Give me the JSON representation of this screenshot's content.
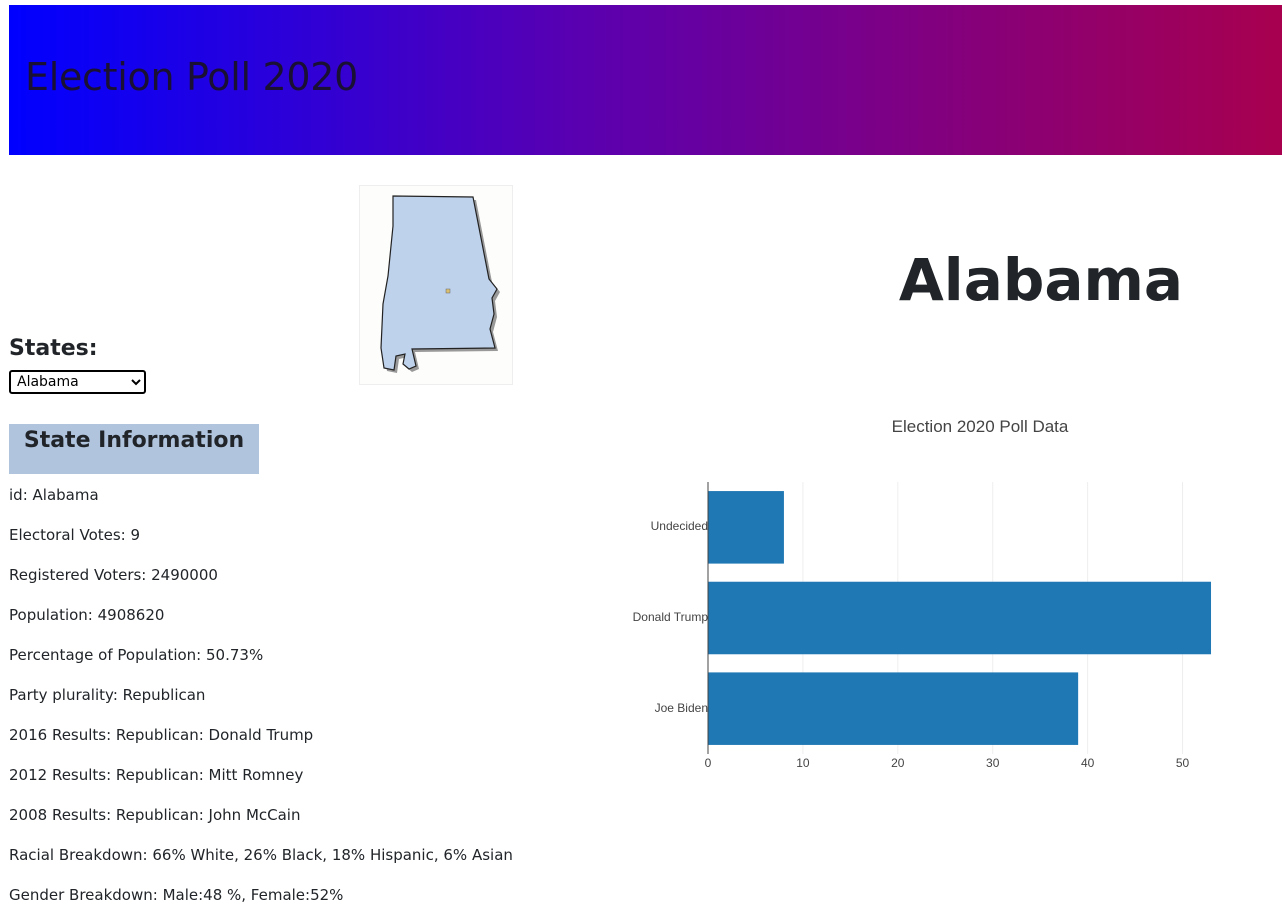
{
  "header": {
    "title": "Election Poll 2020"
  },
  "selector": {
    "label": "States:",
    "selected": "Alabama"
  },
  "state": {
    "name": "Alabama"
  },
  "info": {
    "heading": "State Information",
    "lines": [
      "id: Alabama",
      "Electoral Votes: 9",
      "Registered Voters: 2490000",
      "Population: 4908620",
      "Percentage of Population: 50.73%",
      "Party plurality: Republican",
      "2016 Results: Republican: Donald Trump",
      "2012 Results: Republican: Mitt Romney",
      "2008 Results: Republican: John McCain",
      "Racial Breakdown: 66% White, 26% Black, 18% Hispanic, 6% Asian",
      "Gender Breakdown: Male:48 %, Female:52%"
    ]
  },
  "colors": {
    "bar": "#1f77b4",
    "header_start": "#0000ff",
    "header_end": "#a8004f",
    "info_bg": "#b0c4de"
  },
  "chart_data": {
    "type": "bar",
    "orientation": "horizontal",
    "title": "Election 2020 Poll Data",
    "categories": [
      "Undecided",
      "Donald Trump",
      "Joe Biden"
    ],
    "values": [
      8,
      53,
      39
    ],
    "xlim": [
      0,
      55
    ],
    "xticks": [
      0,
      10,
      20,
      30,
      40,
      50
    ],
    "grid": true
  }
}
